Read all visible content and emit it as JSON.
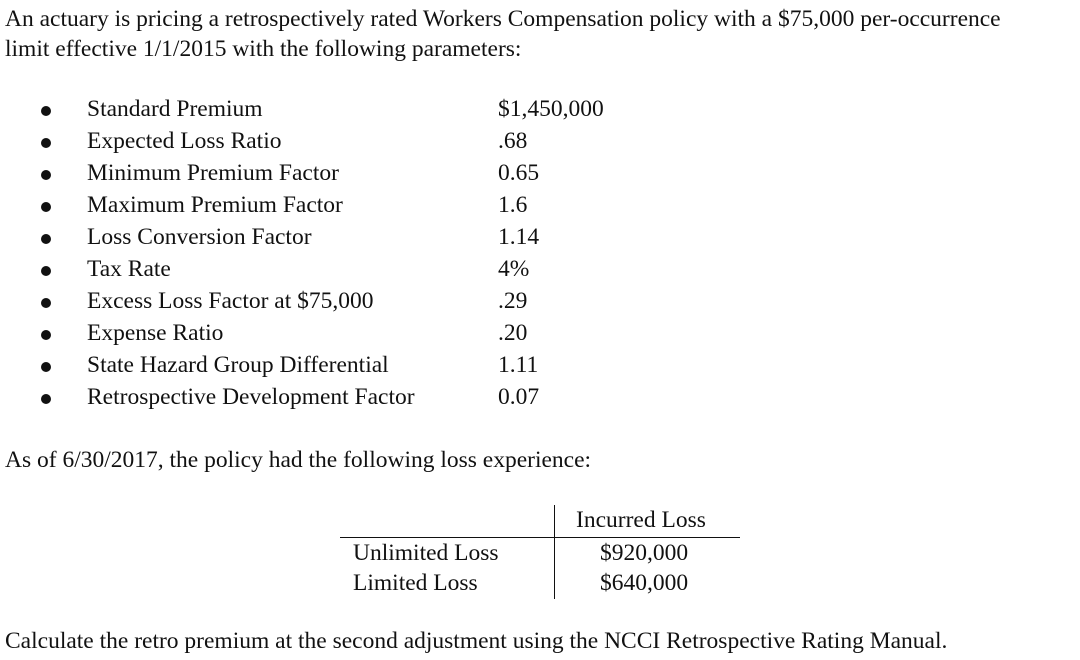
{
  "intro_line1": "An actuary is pricing a retrospectively rated Workers Compensation policy with a $75,000 per-occurrence",
  "intro_line2": "limit effective 1/1/2015 with the following parameters:",
  "parameters": [
    {
      "label": "Standard Premium",
      "value": "$1,450,000"
    },
    {
      "label": "Expected Loss Ratio",
      "value": ".68"
    },
    {
      "label": "Minimum Premium Factor",
      "value": "0.65"
    },
    {
      "label": "Maximum Premium Factor",
      "value": "1.6"
    },
    {
      "label": "Loss Conversion Factor",
      "value": "1.14"
    },
    {
      "label": "Tax Rate",
      "value": "4%"
    },
    {
      "label": "Excess Loss Factor at $75,000",
      "value": ".29"
    },
    {
      "label": "Expense Ratio",
      "value": ".20"
    },
    {
      "label": "State Hazard Group Differential",
      "value": "1.11"
    },
    {
      "label": "Retrospective Development Factor",
      "value": "0.07"
    }
  ],
  "asof_text": "As of 6/30/2017, the policy had the following loss experience:",
  "loss_table": {
    "column_header": "Incurred Loss",
    "rows": [
      {
        "label": "Unlimited Loss",
        "value": "$920,000"
      },
      {
        "label": "Limited Loss",
        "value": "$640,000"
      }
    ]
  },
  "question": "Calculate the retro premium at the second adjustment using the NCCI Retrospective Rating Manual."
}
